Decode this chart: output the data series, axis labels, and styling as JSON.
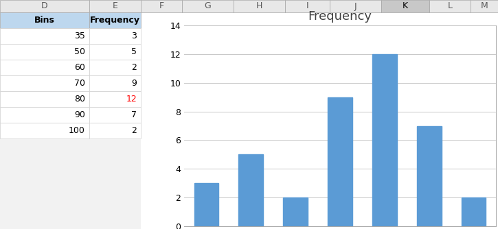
{
  "bins": [
    35,
    50,
    60,
    70,
    80,
    90,
    100
  ],
  "frequencies": [
    3,
    5,
    2,
    9,
    12,
    7,
    2
  ],
  "bar_color": "#5B9BD5",
  "title": "Frequency",
  "title_fontsize": 13,
  "title_color": "#404040",
  "ylim": [
    0,
    14
  ],
  "yticks": [
    0,
    2,
    4,
    6,
    8,
    10,
    12,
    14
  ],
  "grid_color": "#C8C8C8",
  "tick_label_fontsize": 9,
  "bar_width": 0.55,
  "col_headers": [
    "D",
    "E",
    "F",
    "G",
    "H",
    "I",
    "J",
    "K",
    "L",
    "M"
  ],
  "col_header_bg": "#E8E8E8",
  "col_k_bg": "#C8C8C8",
  "table_header_bg": "#BDD7EE",
  "excel_bg": "#F2F2F2",
  "chart_bg": "#FFFFFF",
  "chart_border": "#AAAAAA",
  "row_line_color": "#D0D0D0",
  "freq_color_normal": "#000000",
  "freq_color_red": "#FF0000",
  "table_font_size": 9,
  "col_header_font_size": 9
}
